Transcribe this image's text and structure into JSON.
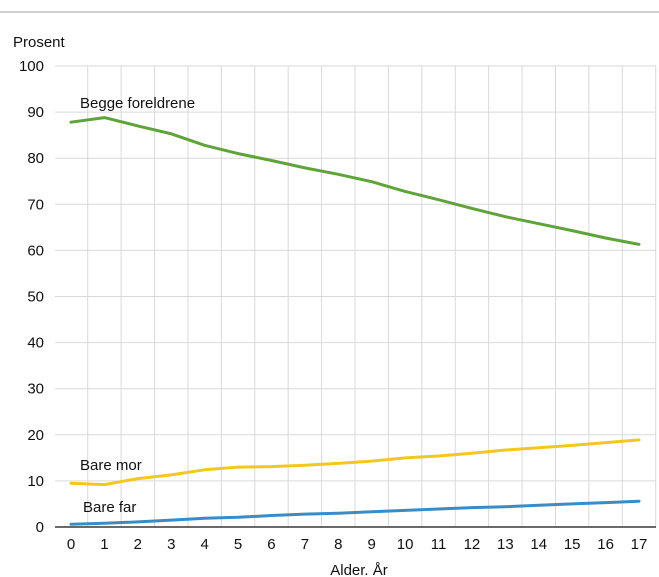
{
  "chart_data": {
    "type": "line",
    "title": "",
    "ylabel": "Prosent",
    "xlabel": "Alder. År",
    "ylim": [
      0,
      100
    ],
    "yticks": [
      0,
      10,
      20,
      30,
      40,
      50,
      60,
      70,
      80,
      90,
      100
    ],
    "x": [
      0,
      1,
      2,
      3,
      4,
      5,
      6,
      7,
      8,
      9,
      10,
      11,
      12,
      13,
      14,
      15,
      16,
      17
    ],
    "xtick_labels": [
      "0",
      "1",
      "2",
      "3",
      "4",
      "5",
      "6",
      "7",
      "8",
      "9",
      "10",
      "11",
      "12",
      "13",
      "14",
      "15",
      "16",
      "17"
    ],
    "grid": true,
    "legend": "inline labels",
    "series": [
      {
        "name": "Begge foreldrene",
        "color": "#5fa33a",
        "values": [
          87.8,
          88.8,
          87.0,
          85.3,
          82.8,
          81.0,
          79.5,
          77.9,
          76.5,
          74.9,
          72.8,
          71.0,
          69.1,
          67.3,
          65.8,
          64.3,
          62.7,
          61.3
        ]
      },
      {
        "name": "Bare mor",
        "color": "#f2c81e",
        "values": [
          9.5,
          9.2,
          10.5,
          11.3,
          12.4,
          13.0,
          13.1,
          13.4,
          13.8,
          14.3,
          15.0,
          15.4,
          16.0,
          16.7,
          17.2,
          17.7,
          18.3,
          18.9
        ]
      },
      {
        "name": "Bare far",
        "color": "#3a8cc8",
        "values": [
          0.6,
          0.8,
          1.1,
          1.5,
          1.9,
          2.1,
          2.5,
          2.8,
          3.0,
          3.3,
          3.6,
          3.9,
          4.2,
          4.4,
          4.7,
          5.0,
          5.3,
          5.6
        ]
      }
    ]
  }
}
